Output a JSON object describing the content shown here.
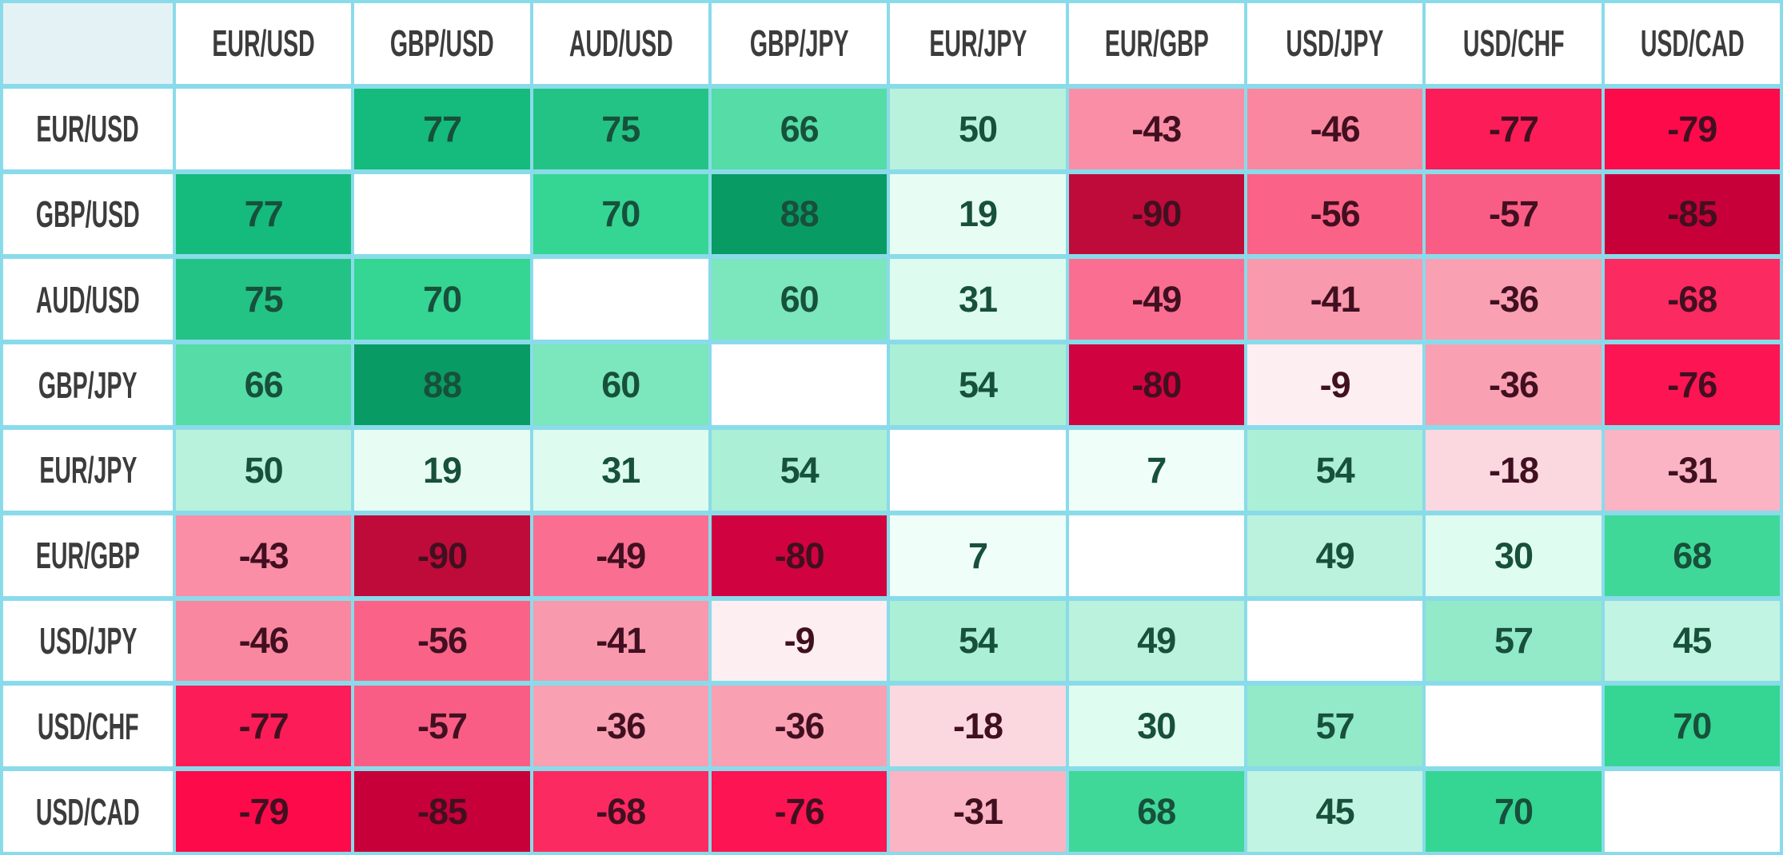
{
  "chart_data": {
    "type": "heatmap",
    "row_labels": [
      "EUR/USD",
      "GBP/USD",
      "AUD/USD",
      "GBP/JPY",
      "EUR/JPY",
      "EUR/GBP",
      "USD/JPY",
      "USD/CHF",
      "USD/CAD"
    ],
    "col_labels": [
      "EUR/USD",
      "GBP/USD",
      "AUD/USD",
      "GBP/JPY",
      "EUR/JPY",
      "EUR/GBP",
      "USD/JPY",
      "USD/CHF",
      "USD/CAD"
    ],
    "matrix": [
      [
        null,
        77,
        75,
        66,
        50,
        -43,
        -46,
        -77,
        -79
      ],
      [
        77,
        null,
        70,
        88,
        19,
        -90,
        -56,
        -57,
        -85
      ],
      [
        75,
        70,
        null,
        60,
        31,
        -49,
        -41,
        -36,
        -68
      ],
      [
        66,
        88,
        60,
        null,
        54,
        -80,
        -9,
        -36,
        -76
      ],
      [
        50,
        19,
        31,
        54,
        null,
        7,
        54,
        -18,
        -31
      ],
      [
        -43,
        -90,
        -49,
        -80,
        7,
        null,
        49,
        30,
        68
      ],
      [
        -46,
        -56,
        -41,
        -9,
        54,
        49,
        null,
        57,
        45
      ],
      [
        -77,
        -57,
        -36,
        -36,
        -18,
        30,
        57,
        null,
        70
      ],
      [
        -79,
        -85,
        -68,
        -76,
        -31,
        68,
        45,
        70,
        null
      ]
    ],
    "value_range": [
      -100,
      100
    ],
    "legend": "none",
    "grid_on": true
  },
  "style": {
    "grid_color": "#8ADBEA",
    "corner_bg": "#E4F2F5",
    "header_bg": "#FFFFFF",
    "diagonal_bg": "#FFFFFF",
    "header_text_color": "#3C3C3C",
    "positive_text_color": "#17503B",
    "negative_text_color": "#411020",
    "value_colors": {
      "88": "#099B64",
      "77": "#15BA7D",
      "75": "#23C385",
      "70": "#35D593",
      "68": "#3FD899",
      "66": "#55DCA7",
      "60": "#7CE6BC",
      "57": "#92EAC8",
      "54": "#ABEFD6",
      "50": "#B8F1DC",
      "49": "#BAF2DD",
      "45": "#C1F4E2",
      "31": "#DDFBEE",
      "30": "#DFFCF0",
      "19": "#E7FDF4",
      "7": "#EFFEF8",
      "-9": "#FDEEF2",
      "-18": "#FBD8E0",
      "-31": "#FAB4C4",
      "-36": "#F9A0B3",
      "-41": "#F999AD",
      "-43": "#FA8EA6",
      "-46": "#FA87A0",
      "-49": "#FA6E92",
      "-56": "#FA6288",
      "-57": "#F95D85",
      "-68": "#FB2A60",
      "-76": "#FC1453",
      "-77": "#FC1C57",
      "-79": "#FD0A4B",
      "-80": "#D00340",
      "-85": "#C70039",
      "-90": "#BE0B3A"
    }
  }
}
